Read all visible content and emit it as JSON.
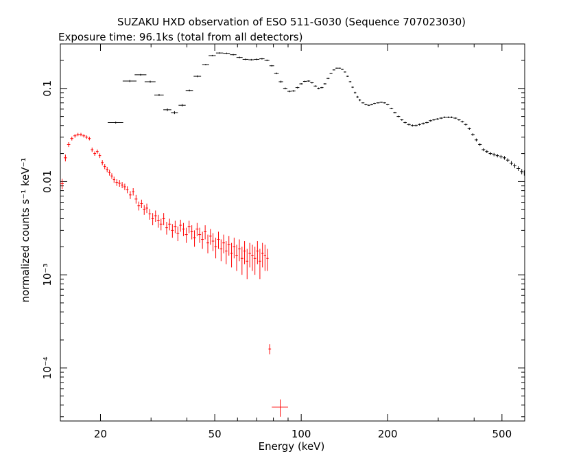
{
  "chart_data": {
    "type": "scatter",
    "title": "SUZAKU HXD observation of ESO 511-G030 (Sequence 707023030)",
    "subtitle": "Exposure time: 96.1ks (total from all detectors)",
    "xlabel": "Energy (keV)",
    "ylabel": "normalized counts s⁻¹ keV⁻¹",
    "xscale": "log",
    "yscale": "log",
    "xlim": [
      14.5,
      600
    ],
    "ylim": [
      2.7e-05,
      0.3
    ],
    "x_ticks": [
      {
        "value": 20,
        "label": "20"
      },
      {
        "value": 50,
        "label": "50"
      },
      {
        "value": 100,
        "label": "100"
      },
      {
        "value": 200,
        "label": "200"
      },
      {
        "value": 500,
        "label": "500"
      }
    ],
    "y_ticks": [
      {
        "value": 0.1,
        "label": "0.1"
      },
      {
        "value": 0.01,
        "label": "0.01"
      },
      {
        "value": 0.001,
        "label": "10⁻³"
      },
      {
        "value": 0.0001,
        "label": "10⁻⁴"
      }
    ],
    "grid": false,
    "legend": "none",
    "series": [
      {
        "detector": "HXD-PIN",
        "color": "#ff0000",
        "points": [
          [
            14.7,
            0.0095,
            0.2,
            0.0012
          ],
          [
            15.1,
            0.018,
            0.2,
            0.0015
          ],
          [
            15.5,
            0.025,
            0.2,
            0.0015
          ],
          [
            15.9,
            0.029,
            0.2,
            0.0014
          ],
          [
            16.3,
            0.031,
            0.2,
            0.0014
          ],
          [
            16.7,
            0.032,
            0.2,
            0.0013
          ],
          [
            17.1,
            0.032,
            0.2,
            0.0013
          ],
          [
            17.5,
            0.031,
            0.2,
            0.0013
          ],
          [
            17.9,
            0.03,
            0.2,
            0.0013
          ],
          [
            18.3,
            0.029,
            0.2,
            0.0013
          ],
          [
            18.7,
            0.022,
            0.2,
            0.0012
          ],
          [
            19.1,
            0.02,
            0.2,
            0.0011
          ],
          [
            19.5,
            0.021,
            0.2,
            0.0011
          ],
          [
            19.9,
            0.019,
            0.2,
            0.0011
          ],
          [
            20.3,
            0.016,
            0.2,
            0.001
          ],
          [
            20.7,
            0.0145,
            0.2,
            0.0009
          ],
          [
            21.1,
            0.0135,
            0.2,
            0.0009
          ],
          [
            21.5,
            0.0125,
            0.2,
            0.0009
          ],
          [
            21.9,
            0.0115,
            0.2,
            0.0008
          ],
          [
            22.3,
            0.0105,
            0.2,
            0.0008
          ],
          [
            22.8,
            0.0098,
            0.25,
            0.0008
          ],
          [
            23.3,
            0.0096,
            0.25,
            0.0008
          ],
          [
            23.8,
            0.0092,
            0.25,
            0.0007
          ],
          [
            24.3,
            0.0088,
            0.25,
            0.0007
          ],
          [
            24.8,
            0.0082,
            0.25,
            0.0007
          ],
          [
            25.4,
            0.0072,
            0.25,
            0.0007
          ],
          [
            26.0,
            0.0078,
            0.25,
            0.0007
          ],
          [
            26.6,
            0.0065,
            0.3,
            0.0007
          ],
          [
            27.2,
            0.0055,
            0.3,
            0.0006
          ],
          [
            27.8,
            0.0058,
            0.3,
            0.0006
          ],
          [
            28.4,
            0.005,
            0.3,
            0.0006
          ],
          [
            29.0,
            0.0052,
            0.3,
            0.0006
          ],
          [
            29.7,
            0.0045,
            0.3,
            0.0006
          ],
          [
            30.4,
            0.004,
            0.3,
            0.0006
          ],
          [
            31.1,
            0.0043,
            0.35,
            0.0006
          ],
          [
            31.8,
            0.0038,
            0.35,
            0.0006
          ],
          [
            32.5,
            0.0035,
            0.35,
            0.0005
          ],
          [
            33.2,
            0.004,
            0.35,
            0.0006
          ],
          [
            34.0,
            0.0032,
            0.35,
            0.0005
          ],
          [
            34.8,
            0.0035,
            0.4,
            0.0005
          ],
          [
            35.6,
            0.003,
            0.4,
            0.0005
          ],
          [
            36.4,
            0.0033,
            0.4,
            0.0005
          ],
          [
            37.2,
            0.0028,
            0.4,
            0.0005
          ],
          [
            38.0,
            0.0034,
            0.4,
            0.0005
          ],
          [
            38.9,
            0.0031,
            0.45,
            0.0005
          ],
          [
            39.8,
            0.0027,
            0.45,
            0.0005
          ],
          [
            40.7,
            0.0033,
            0.45,
            0.0005
          ],
          [
            41.6,
            0.0029,
            0.45,
            0.0005
          ],
          [
            42.5,
            0.0025,
            0.5,
            0.0005
          ],
          [
            43.4,
            0.0031,
            0.5,
            0.0005
          ],
          [
            44.3,
            0.0027,
            0.5,
            0.0005
          ],
          [
            45.3,
            0.0024,
            0.5,
            0.0005
          ],
          [
            46.3,
            0.0029,
            0.5,
            0.0005
          ],
          [
            47.3,
            0.0022,
            0.5,
            0.0005
          ],
          [
            48.3,
            0.0026,
            0.5,
            0.0005
          ],
          [
            49.3,
            0.0023,
            0.5,
            0.0005
          ],
          [
            50.4,
            0.002,
            0.55,
            0.0005
          ],
          [
            51.5,
            0.0024,
            0.55,
            0.0005
          ],
          [
            52.6,
            0.0019,
            0.55,
            0.0005
          ],
          [
            53.7,
            0.0022,
            0.55,
            0.0005
          ],
          [
            54.8,
            0.0018,
            0.55,
            0.0005
          ],
          [
            56.0,
            0.0021,
            0.6,
            0.0005
          ],
          [
            57.2,
            0.0017,
            0.6,
            0.0005
          ],
          [
            58.4,
            0.002,
            0.6,
            0.0005
          ],
          [
            59.6,
            0.0016,
            0.6,
            0.0005
          ],
          [
            60.9,
            0.0019,
            0.6,
            0.0005
          ],
          [
            62.2,
            0.0015,
            0.65,
            0.0005
          ],
          [
            63.5,
            0.0018,
            0.65,
            0.0005
          ],
          [
            64.8,
            0.0014,
            0.65,
            0.0005
          ],
          [
            66.2,
            0.0017,
            0.65,
            0.0005
          ],
          [
            67.6,
            0.0016,
            0.7,
            0.0005
          ],
          [
            69.0,
            0.0015,
            0.7,
            0.0005
          ],
          [
            70.4,
            0.0018,
            0.7,
            0.0005
          ],
          [
            71.8,
            0.0014,
            0.7,
            0.0005
          ],
          [
            73.3,
            0.0017,
            0.7,
            0.0005
          ],
          [
            74.8,
            0.0016,
            0.7,
            0.0005
          ],
          [
            76.3,
            0.0015,
            0.7,
            0.0004
          ],
          [
            77.7,
            0.00016,
            0.8,
            2e-05
          ],
          [
            84.5,
            3.8e-05,
            5.5,
            8e-06
          ]
        ]
      },
      {
        "detector": "HXD-GSO",
        "color": "#000000",
        "points": [
          [
            22.6,
            0.043,
            1.4,
            0.001
          ],
          [
            25.3,
            0.12,
            1.4,
            0.003
          ],
          [
            27.6,
            0.14,
            1.3,
            0.003
          ],
          [
            29.8,
            0.118,
            1.3,
            0.003
          ],
          [
            32.0,
            0.085,
            1.2,
            0.002
          ],
          [
            34.2,
            0.059,
            1.1,
            0.002
          ],
          [
            36.2,
            0.055,
            1.0,
            0.002
          ],
          [
            38.5,
            0.066,
            1.1,
            0.002
          ],
          [
            40.8,
            0.095,
            1.2,
            0.002
          ],
          [
            43.5,
            0.135,
            1.3,
            0.003
          ],
          [
            46.5,
            0.18,
            1.3,
            0.003
          ],
          [
            49.0,
            0.225,
            1.4,
            0.004
          ],
          [
            52.0,
            0.24,
            1.5,
            0.004
          ],
          [
            55.0,
            0.238,
            1.5,
            0.004
          ],
          [
            58.0,
            0.23,
            1.5,
            0.004
          ],
          [
            61.0,
            0.215,
            1.5,
            0.004
          ],
          [
            64.0,
            0.205,
            1.5,
            0.004
          ],
          [
            67.0,
            0.203,
            1.5,
            0.004
          ],
          [
            70.0,
            0.205,
            1.5,
            0.004
          ],
          [
            73.0,
            0.208,
            1.5,
            0.004
          ],
          [
            76.0,
            0.2,
            1.5,
            0.004
          ],
          [
            79.0,
            0.175,
            1.5,
            0.003
          ],
          [
            82.0,
            0.145,
            1.5,
            0.003
          ],
          [
            85.0,
            0.118,
            1.5,
            0.003
          ],
          [
            88.0,
            0.1,
            1.5,
            0.002
          ],
          [
            91.0,
            0.093,
            1.5,
            0.002
          ],
          [
            94.0,
            0.094,
            1.5,
            0.002
          ],
          [
            97.0,
            0.102,
            1.5,
            0.002
          ],
          [
            100.0,
            0.112,
            1.5,
            0.002
          ],
          [
            103.0,
            0.119,
            1.5,
            0.002
          ],
          [
            106.0,
            0.12,
            1.5,
            0.002
          ],
          [
            109.0,
            0.115,
            1.5,
            0.002
          ],
          [
            112.0,
            0.106,
            1.5,
            0.002
          ],
          [
            115.0,
            0.1,
            1.5,
            0.002
          ],
          [
            118.0,
            0.102,
            1.5,
            0.002
          ],
          [
            121.0,
            0.112,
            1.5,
            0.002
          ],
          [
            124.0,
            0.128,
            1.5,
            0.002
          ],
          [
            127.0,
            0.145,
            1.5,
            0.002
          ],
          [
            130.0,
            0.158,
            1.5,
            0.002
          ],
          [
            133.0,
            0.165,
            1.5,
            0.002
          ],
          [
            136.0,
            0.165,
            1.5,
            0.002
          ],
          [
            139.0,
            0.16,
            1.5,
            0.002
          ],
          [
            142.0,
            0.15,
            1.5,
            0.002
          ],
          [
            145.0,
            0.135,
            1.5,
            0.002
          ],
          [
            148.0,
            0.118,
            1.5,
            0.002
          ],
          [
            151.0,
            0.103,
            1.5,
            0.002
          ],
          [
            154.0,
            0.09,
            1.5,
            0.002
          ],
          [
            157.0,
            0.081,
            1.5,
            0.002
          ],
          [
            160.0,
            0.075,
            1.5,
            0.002
          ],
          [
            164.0,
            0.07,
            2,
            0.001
          ],
          [
            168.0,
            0.067,
            2,
            0.001
          ],
          [
            172.0,
            0.066,
            2,
            0.001
          ],
          [
            176.0,
            0.067,
            2,
            0.001
          ],
          [
            180.0,
            0.069,
            2,
            0.001
          ],
          [
            185.0,
            0.07,
            2.5,
            0.001
          ],
          [
            190.0,
            0.071,
            2.5,
            0.001
          ],
          [
            195.0,
            0.07,
            2.5,
            0.001
          ],
          [
            200.0,
            0.067,
            2.5,
            0.001
          ],
          [
            206.0,
            0.061,
            3,
            0.001
          ],
          [
            212.0,
            0.055,
            3,
            0.001
          ],
          [
            218.0,
            0.05,
            3,
            0.001
          ],
          [
            224.0,
            0.046,
            3,
            0.001
          ],
          [
            230.0,
            0.043,
            3,
            0.001
          ],
          [
            237.0,
            0.041,
            3.5,
            0.001
          ],
          [
            244.0,
            0.04,
            3.5,
            0.001
          ],
          [
            251.0,
            0.04,
            3.5,
            0.001
          ],
          [
            258.0,
            0.041,
            3.5,
            0.001
          ],
          [
            266.0,
            0.042,
            4,
            0.001
          ],
          [
            274.0,
            0.043,
            4,
            0.001
          ],
          [
            282.0,
            0.045,
            4,
            0.001
          ],
          [
            290.0,
            0.046,
            4,
            0.001
          ],
          [
            298.0,
            0.047,
            4,
            0.001
          ],
          [
            307.0,
            0.048,
            4.5,
            0.001
          ],
          [
            316.0,
            0.049,
            4.5,
            0.001
          ],
          [
            325.0,
            0.049,
            4.5,
            0.001
          ],
          [
            334.0,
            0.049,
            4.5,
            0.001
          ],
          [
            344.0,
            0.048,
            5,
            0.001
          ],
          [
            354.0,
            0.046,
            5,
            0.001
          ],
          [
            364.0,
            0.044,
            5,
            0.001
          ],
          [
            374.0,
            0.041,
            5,
            0.001
          ],
          [
            385.0,
            0.037,
            5.5,
            0.001
          ],
          [
            396.0,
            0.032,
            5.5,
            0.001
          ],
          [
            407.0,
            0.028,
            5.5,
            0.001
          ],
          [
            419.0,
            0.025,
            6,
            0.0008
          ],
          [
            431.0,
            0.022,
            6,
            0.0008
          ],
          [
            443.0,
            0.021,
            6,
            0.0008
          ],
          [
            456.0,
            0.02,
            6.5,
            0.0008
          ],
          [
            469.0,
            0.0195,
            6.5,
            0.0008
          ],
          [
            482.0,
            0.019,
            6.5,
            0.0008
          ],
          [
            496.0,
            0.0185,
            7,
            0.0008
          ],
          [
            510.0,
            0.018,
            7,
            0.0008
          ],
          [
            524.0,
            0.017,
            7,
            0.0008
          ],
          [
            539.0,
            0.0158,
            7.5,
            0.0008
          ],
          [
            554.0,
            0.0148,
            7.5,
            0.0008
          ],
          [
            570.0,
            0.0138,
            8,
            0.0008
          ],
          [
            586.0,
            0.0128,
            8,
            0.0008
          ],
          [
            598.0,
            0.0124,
            2,
            0.0008
          ]
        ]
      }
    ]
  }
}
